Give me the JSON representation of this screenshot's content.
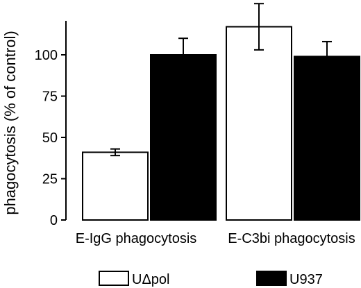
{
  "chart_data": {
    "type": "bar",
    "title": "",
    "xlabel": "",
    "ylabel": "phagocytosis (% of control)",
    "ylim": [
      0,
      125
    ],
    "yticks": [
      0,
      25,
      50,
      75,
      100
    ],
    "categories": [
      "E-IgG phagocytosis",
      "E-C3bi phagocytosis"
    ],
    "series": [
      {
        "name": "UΔpol",
        "color": "#ffffff",
        "values": [
          41,
          117
        ],
        "errors": [
          2,
          14
        ]
      },
      {
        "name": "U937",
        "color": "#000000",
        "values": [
          100,
          99
        ],
        "errors": [
          10,
          9
        ]
      }
    ],
    "grid": false,
    "legend_position": "bottom"
  }
}
